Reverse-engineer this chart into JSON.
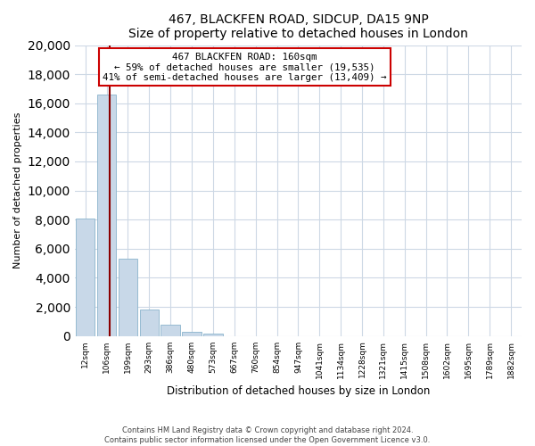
{
  "title": "467, BLACKFEN ROAD, SIDCUP, DA15 9NP",
  "subtitle": "Size of property relative to detached houses in London",
  "xlabel": "Distribution of detached houses by size in London",
  "ylabel": "Number of detached properties",
  "bar_labels": [
    "12sqm",
    "106sqm",
    "199sqm",
    "293sqm",
    "386sqm",
    "480sqm",
    "573sqm",
    "667sqm",
    "760sqm",
    "854sqm",
    "947sqm",
    "1041sqm",
    "1134sqm",
    "1228sqm",
    "1321sqm",
    "1415sqm",
    "1508sqm",
    "1602sqm",
    "1695sqm",
    "1789sqm",
    "1882sqm"
  ],
  "bar_heights": [
    8100,
    16600,
    5300,
    1800,
    750,
    280,
    180,
    0,
    0,
    0,
    0,
    0,
    0,
    0,
    0,
    0,
    0,
    0,
    0,
    0,
    0
  ],
  "bar_color": "#c8d8e8",
  "bar_edge_color": "#8ab4cc",
  "annotation_title": "467 BLACKFEN ROAD: 160sqm",
  "annotation_line1": "← 59% of detached houses are smaller (19,535)",
  "annotation_line2": "41% of semi-detached houses are larger (13,409) →",
  "annotation_box_color": "#ffffff",
  "annotation_box_edge": "#cc0000",
  "vertical_line_color": "#8b0000",
  "vertical_line_x": 1.15,
  "ylim": [
    0,
    20000
  ],
  "yticks": [
    0,
    2000,
    4000,
    6000,
    8000,
    10000,
    12000,
    14000,
    16000,
    18000,
    20000
  ],
  "footer_line1": "Contains HM Land Registry data © Crown copyright and database right 2024.",
  "footer_line2": "Contains public sector information licensed under the Open Government Licence v3.0.",
  "bg_color": "#ffffff",
  "grid_color": "#cdd8e5"
}
